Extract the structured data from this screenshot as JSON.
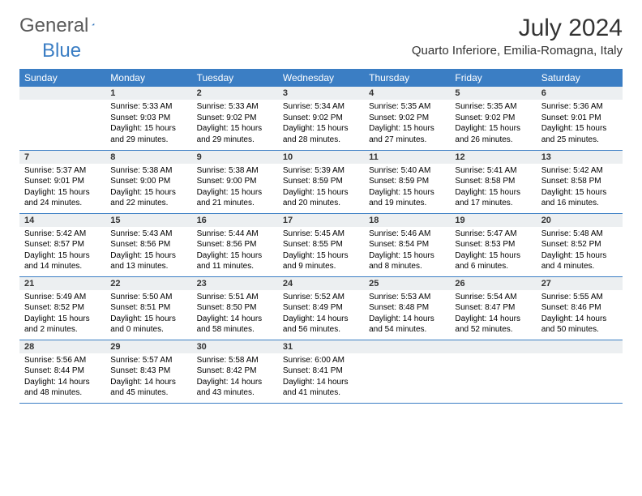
{
  "logo": {
    "text1": "General",
    "text2": "Blue"
  },
  "title": "July 2024",
  "location": "Quarto Inferiore, Emilia-Romagna, Italy",
  "colors": {
    "header_bg": "#3b7ec4",
    "header_text": "#ffffff",
    "daynum_bg": "#eceff1",
    "row_border": "#3b7ec4",
    "logo_gray": "#5a5a5a",
    "logo_blue": "#3b7ec4",
    "body_bg": "#ffffff"
  },
  "weekdays": [
    "Sunday",
    "Monday",
    "Tuesday",
    "Wednesday",
    "Thursday",
    "Friday",
    "Saturday"
  ],
  "weeks": [
    [
      {
        "day": "",
        "lines": []
      },
      {
        "day": "1",
        "lines": [
          "Sunrise: 5:33 AM",
          "Sunset: 9:03 PM",
          "Daylight: 15 hours and 29 minutes."
        ]
      },
      {
        "day": "2",
        "lines": [
          "Sunrise: 5:33 AM",
          "Sunset: 9:02 PM",
          "Daylight: 15 hours and 29 minutes."
        ]
      },
      {
        "day": "3",
        "lines": [
          "Sunrise: 5:34 AM",
          "Sunset: 9:02 PM",
          "Daylight: 15 hours and 28 minutes."
        ]
      },
      {
        "day": "4",
        "lines": [
          "Sunrise: 5:35 AM",
          "Sunset: 9:02 PM",
          "Daylight: 15 hours and 27 minutes."
        ]
      },
      {
        "day": "5",
        "lines": [
          "Sunrise: 5:35 AM",
          "Sunset: 9:02 PM",
          "Daylight: 15 hours and 26 minutes."
        ]
      },
      {
        "day": "6",
        "lines": [
          "Sunrise: 5:36 AM",
          "Sunset: 9:01 PM",
          "Daylight: 15 hours and 25 minutes."
        ]
      }
    ],
    [
      {
        "day": "7",
        "lines": [
          "Sunrise: 5:37 AM",
          "Sunset: 9:01 PM",
          "Daylight: 15 hours and 24 minutes."
        ]
      },
      {
        "day": "8",
        "lines": [
          "Sunrise: 5:38 AM",
          "Sunset: 9:00 PM",
          "Daylight: 15 hours and 22 minutes."
        ]
      },
      {
        "day": "9",
        "lines": [
          "Sunrise: 5:38 AM",
          "Sunset: 9:00 PM",
          "Daylight: 15 hours and 21 minutes."
        ]
      },
      {
        "day": "10",
        "lines": [
          "Sunrise: 5:39 AM",
          "Sunset: 8:59 PM",
          "Daylight: 15 hours and 20 minutes."
        ]
      },
      {
        "day": "11",
        "lines": [
          "Sunrise: 5:40 AM",
          "Sunset: 8:59 PM",
          "Daylight: 15 hours and 19 minutes."
        ]
      },
      {
        "day": "12",
        "lines": [
          "Sunrise: 5:41 AM",
          "Sunset: 8:58 PM",
          "Daylight: 15 hours and 17 minutes."
        ]
      },
      {
        "day": "13",
        "lines": [
          "Sunrise: 5:42 AM",
          "Sunset: 8:58 PM",
          "Daylight: 15 hours and 16 minutes."
        ]
      }
    ],
    [
      {
        "day": "14",
        "lines": [
          "Sunrise: 5:42 AM",
          "Sunset: 8:57 PM",
          "Daylight: 15 hours and 14 minutes."
        ]
      },
      {
        "day": "15",
        "lines": [
          "Sunrise: 5:43 AM",
          "Sunset: 8:56 PM",
          "Daylight: 15 hours and 13 minutes."
        ]
      },
      {
        "day": "16",
        "lines": [
          "Sunrise: 5:44 AM",
          "Sunset: 8:56 PM",
          "Daylight: 15 hours and 11 minutes."
        ]
      },
      {
        "day": "17",
        "lines": [
          "Sunrise: 5:45 AM",
          "Sunset: 8:55 PM",
          "Daylight: 15 hours and 9 minutes."
        ]
      },
      {
        "day": "18",
        "lines": [
          "Sunrise: 5:46 AM",
          "Sunset: 8:54 PM",
          "Daylight: 15 hours and 8 minutes."
        ]
      },
      {
        "day": "19",
        "lines": [
          "Sunrise: 5:47 AM",
          "Sunset: 8:53 PM",
          "Daylight: 15 hours and 6 minutes."
        ]
      },
      {
        "day": "20",
        "lines": [
          "Sunrise: 5:48 AM",
          "Sunset: 8:52 PM",
          "Daylight: 15 hours and 4 minutes."
        ]
      }
    ],
    [
      {
        "day": "21",
        "lines": [
          "Sunrise: 5:49 AM",
          "Sunset: 8:52 PM",
          "Daylight: 15 hours and 2 minutes."
        ]
      },
      {
        "day": "22",
        "lines": [
          "Sunrise: 5:50 AM",
          "Sunset: 8:51 PM",
          "Daylight: 15 hours and 0 minutes."
        ]
      },
      {
        "day": "23",
        "lines": [
          "Sunrise: 5:51 AM",
          "Sunset: 8:50 PM",
          "Daylight: 14 hours and 58 minutes."
        ]
      },
      {
        "day": "24",
        "lines": [
          "Sunrise: 5:52 AM",
          "Sunset: 8:49 PM",
          "Daylight: 14 hours and 56 minutes."
        ]
      },
      {
        "day": "25",
        "lines": [
          "Sunrise: 5:53 AM",
          "Sunset: 8:48 PM",
          "Daylight: 14 hours and 54 minutes."
        ]
      },
      {
        "day": "26",
        "lines": [
          "Sunrise: 5:54 AM",
          "Sunset: 8:47 PM",
          "Daylight: 14 hours and 52 minutes."
        ]
      },
      {
        "day": "27",
        "lines": [
          "Sunrise: 5:55 AM",
          "Sunset: 8:46 PM",
          "Daylight: 14 hours and 50 minutes."
        ]
      }
    ],
    [
      {
        "day": "28",
        "lines": [
          "Sunrise: 5:56 AM",
          "Sunset: 8:44 PM",
          "Daylight: 14 hours and 48 minutes."
        ]
      },
      {
        "day": "29",
        "lines": [
          "Sunrise: 5:57 AM",
          "Sunset: 8:43 PM",
          "Daylight: 14 hours and 45 minutes."
        ]
      },
      {
        "day": "30",
        "lines": [
          "Sunrise: 5:58 AM",
          "Sunset: 8:42 PM",
          "Daylight: 14 hours and 43 minutes."
        ]
      },
      {
        "day": "31",
        "lines": [
          "Sunrise: 6:00 AM",
          "Sunset: 8:41 PM",
          "Daylight: 14 hours and 41 minutes."
        ]
      },
      {
        "day": "",
        "lines": []
      },
      {
        "day": "",
        "lines": []
      },
      {
        "day": "",
        "lines": []
      }
    ]
  ]
}
